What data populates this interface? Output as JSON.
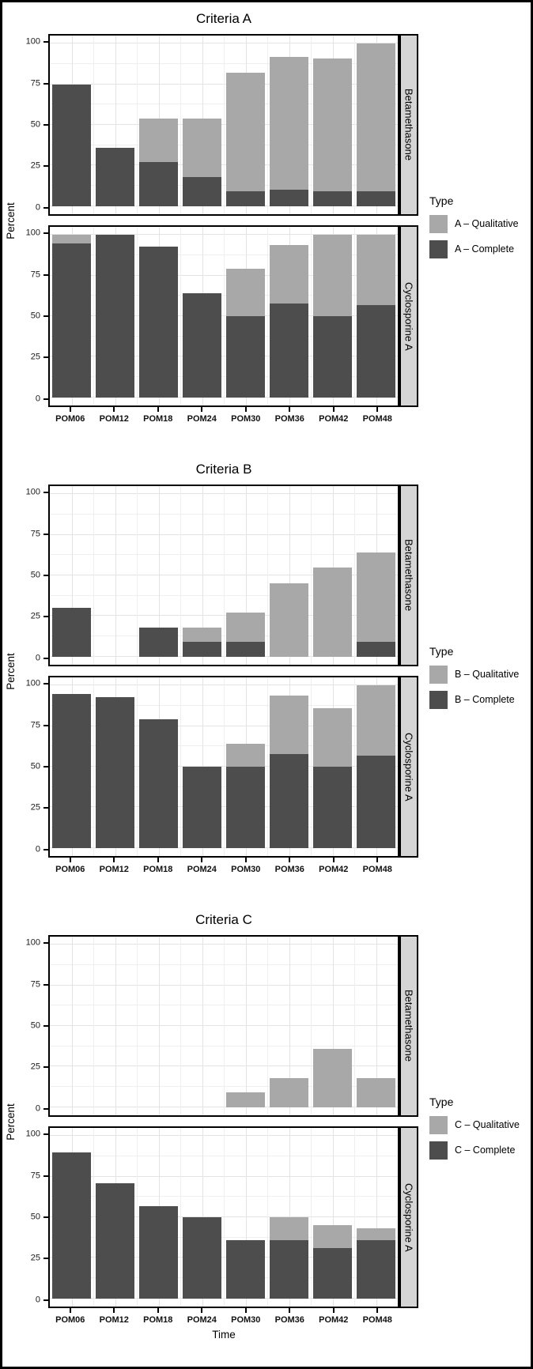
{
  "figure": {
    "y_axis_label": "Percent",
    "x_axis_label": "Time",
    "y_ticks": [
      0,
      25,
      50,
      75,
      100
    ],
    "categories": [
      "POM06",
      "POM12",
      "POM18",
      "POM24",
      "POM30",
      "POM36",
      "POM42",
      "POM48"
    ]
  },
  "colors": {
    "complete": "#4d4d4d",
    "qualitative": "#a8a8a8",
    "strip_bg": "#d5d5d5",
    "panel_border": "#000000",
    "grid_major": "#e3e3e3",
    "grid_minor": "#efefef",
    "frame_border": "#000000"
  },
  "chart_data": [
    {
      "type": "bar",
      "stacked": true,
      "title": "Criteria A",
      "xlabel": "Time",
      "ylabel": "Percent",
      "ylim": [
        0,
        100
      ],
      "grid": true,
      "legend_position": "right",
      "categories": [
        "POM06",
        "POM12",
        "POM18",
        "POM24",
        "POM30",
        "POM36",
        "POM42",
        "POM48"
      ],
      "legend": {
        "title": "Type",
        "entries": [
          {
            "label": "A – Qualitative",
            "color_key": "qualitative"
          },
          {
            "label": "A – Complete",
            "color_key": "complete"
          }
        ]
      },
      "facets": [
        {
          "label": "Betamethasone",
          "series": [
            {
              "name": "A – Complete",
              "color_key": "complete",
              "values": [
                75,
                36,
                27,
                18,
                9,
                10,
                9,
                9
              ]
            },
            {
              "name": "A – Qualitative",
              "color_key": "qualitative",
              "values": [
                0,
                0,
                27,
                36,
                73,
                82,
                82,
                91
              ]
            }
          ]
        },
        {
          "label": "Cyclosporine A",
          "series": [
            {
              "name": "A – Complete",
              "color_key": "complete",
              "values": [
                95,
                100,
                93,
                64,
                50,
                58,
                50,
                57
              ]
            },
            {
              "name": "A – Qualitative",
              "color_key": "qualitative",
              "values": [
                5,
                0,
                0,
                0,
                29,
                36,
                50,
                43
              ]
            }
          ]
        }
      ]
    },
    {
      "type": "bar",
      "stacked": true,
      "title": "Criteria B",
      "xlabel": "Time",
      "ylabel": "Percent",
      "ylim": [
        0,
        100
      ],
      "grid": true,
      "legend_position": "right",
      "categories": [
        "POM06",
        "POM12",
        "POM18",
        "POM24",
        "POM30",
        "POM36",
        "POM42",
        "POM48"
      ],
      "legend": {
        "title": "Type",
        "entries": [
          {
            "label": "B – Qualitative",
            "color_key": "qualitative"
          },
          {
            "label": "B – Complete",
            "color_key": "complete"
          }
        ]
      },
      "facets": [
        {
          "label": "Betamethasone",
          "series": [
            {
              "name": "B – Complete",
              "color_key": "complete",
              "values": [
                30,
                0,
                18,
                9,
                9,
                0,
                0,
                9
              ]
            },
            {
              "name": "B – Qualitative",
              "color_key": "qualitative",
              "values": [
                0,
                0,
                0,
                9,
                18,
                45,
                55,
                55
              ]
            }
          ]
        },
        {
          "label": "Cyclosporine A",
          "series": [
            {
              "name": "B – Complete",
              "color_key": "complete",
              "values": [
                95,
                93,
                79,
                50,
                50,
                58,
                50,
                57
              ]
            },
            {
              "name": "B – Qualitative",
              "color_key": "qualitative",
              "values": [
                0,
                0,
                0,
                0,
                14,
                36,
                36,
                43
              ]
            }
          ]
        }
      ]
    },
    {
      "type": "bar",
      "stacked": true,
      "title": "Criteria C",
      "xlabel": "Time",
      "ylabel": "Percent",
      "ylim": [
        0,
        100
      ],
      "grid": true,
      "legend_position": "right",
      "categories": [
        "POM06",
        "POM12",
        "POM18",
        "POM24",
        "POM30",
        "POM36",
        "POM42",
        "POM48"
      ],
      "legend": {
        "title": "Type",
        "entries": [
          {
            "label": "C – Qualitative",
            "color_key": "qualitative"
          },
          {
            "label": "C – Complete",
            "color_key": "complete"
          }
        ]
      },
      "facets": [
        {
          "label": "Betamethasone",
          "series": [
            {
              "name": "C – Complete",
              "color_key": "complete",
              "values": [
                0,
                0,
                0,
                0,
                0,
                0,
                0,
                0
              ]
            },
            {
              "name": "C – Qualitative",
              "color_key": "qualitative",
              "values": [
                0,
                0,
                0,
                0,
                9,
                18,
                36,
                18
              ]
            }
          ]
        },
        {
          "label": "Cyclosporine A",
          "series": [
            {
              "name": "C – Complete",
              "color_key": "complete",
              "values": [
                90,
                71,
                57,
                50,
                36,
                36,
                31,
                36
              ]
            },
            {
              "name": "C – Qualitative",
              "color_key": "qualitative",
              "values": [
                0,
                0,
                0,
                0,
                0,
                14,
                14,
                7
              ]
            }
          ]
        }
      ]
    }
  ]
}
